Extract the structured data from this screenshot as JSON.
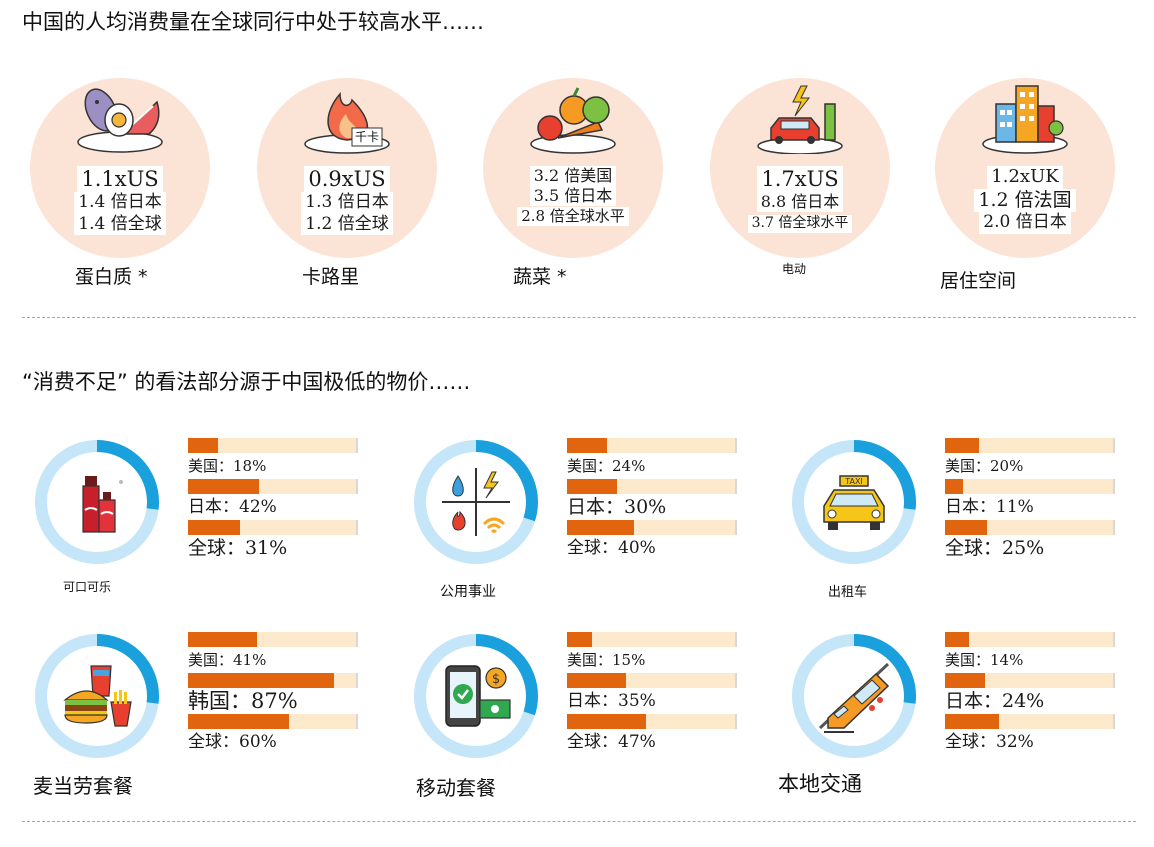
{
  "section1": {
    "title": "中国的人均消费量在全球同行中处于较高水平……",
    "items": [
      {
        "label": "蛋白质 *",
        "icon": "protein-food-icon",
        "stats": [
          "1.1xUS",
          "1.4 倍日本",
          "1.4 倍全球"
        ]
      },
      {
        "label": "卡路里",
        "icon": "calorie-flame-icon",
        "icon_text": "千卡",
        "stats": [
          "0.9xUS",
          "1.3 倍日本",
          "1.2 倍全球"
        ]
      },
      {
        "label": "蔬菜 *",
        "icon": "vegetables-icon",
        "stats": [
          "3.2 倍美国",
          "3.5 倍日本",
          "2.8 倍全球水平"
        ]
      },
      {
        "label": "电动",
        "icon": "electric-car-icon",
        "stats": [
          "1.7xUS",
          "8.8 倍日本",
          "3.7 倍全球水平"
        ]
      },
      {
        "label": "居住空间",
        "icon": "housing-buildings-icon",
        "stats": [
          "1.2xUK",
          "1.2 倍法国",
          "2.0 倍日本"
        ]
      }
    ]
  },
  "section2": {
    "title": "“消费不足” 的看法部分源于中国极低的物价……",
    "items": [
      {
        "label": "可口可乐",
        "icon": "cola-bottles-icon",
        "ring_fraction": 0.27,
        "bars": [
          {
            "text": "美国：18%",
            "value": 18
          },
          {
            "text": "日本：42%",
            "value": 42
          },
          {
            "text": "全球：31%",
            "value": 31
          }
        ]
      },
      {
        "label": "公用事业",
        "icon": "utilities-icon",
        "ring_fraction": 0.3,
        "bars": [
          {
            "text": "美国：24%",
            "value": 24
          },
          {
            "text": "日本：30%",
            "value": 30
          },
          {
            "text": "全球：40%",
            "value": 40
          }
        ]
      },
      {
        "label": "出租车",
        "icon": "taxi-icon",
        "ring_fraction": 0.27,
        "bars": [
          {
            "text": "美国：20%",
            "value": 20
          },
          {
            "text": "日本：11%",
            "value": 11
          },
          {
            "text": "全球：25%",
            "value": 25
          }
        ]
      },
      {
        "label": "麦当劳套餐",
        "icon": "fast-food-meal-icon",
        "ring_fraction": 0.27,
        "bars": [
          {
            "text": "美国：41%",
            "value": 41
          },
          {
            "text": "韩国：87%",
            "value": 87
          },
          {
            "text": "全球：60%",
            "value": 60
          }
        ]
      },
      {
        "label": "移动套餐",
        "icon": "mobile-plan-icon",
        "ring_fraction": 0.3,
        "bars": [
          {
            "text": "美国：15%",
            "value": 15
          },
          {
            "text": "日本：35%",
            "value": 35
          },
          {
            "text": "全球：47%",
            "value": 47
          }
        ]
      },
      {
        "label": "本地交通",
        "icon": "local-transit-train-icon",
        "ring_fraction": 0.27,
        "bars": [
          {
            "text": "美国：14%",
            "value": 14
          },
          {
            "text": "日本：24%",
            "value": 24
          },
          {
            "text": "全球：32%",
            "value": 32
          }
        ]
      }
    ]
  },
  "colors": {
    "circle_bg": "#fbe3d6",
    "ring": "#c4e6f8",
    "ring_accent": "#1aa0dc",
    "bar_track": "#fde9cc",
    "bar_fill": "#e1640e",
    "divider": "#7fb3d5"
  }
}
